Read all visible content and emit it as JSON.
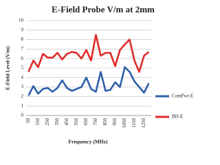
{
  "chart_data": {
    "type": "line",
    "title": "E-Field Probe V/m at 2mm",
    "x_label": "Frequency (MHz)",
    "y_label": "E-Field Level (V/m)",
    "categories": [
      "50",
      null,
      "150",
      null,
      "250",
      null,
      "350",
      null,
      "450",
      null,
      "550",
      null,
      "650",
      null,
      "750",
      null,
      "850",
      null,
      "950",
      null,
      "1050",
      null,
      "1150",
      null,
      "1250",
      null
    ],
    "series": [
      {
        "name": "ComPwr-E",
        "color": "#2e5ea8",
        "values": [
          2.1,
          3.1,
          2.3,
          2.8,
          2.9,
          2.5,
          2.9,
          3.7,
          2.9,
          2.6,
          2.8,
          3.0,
          4.0,
          2.8,
          2.5,
          4.6,
          2.6,
          2.7,
          3.5,
          3.0,
          5.1,
          4.6,
          3.6,
          3.0,
          2.4,
          3.4
        ]
      },
      {
        "name": "BH-E",
        "color": "#e02a2a",
        "values": [
          4.6,
          5.8,
          5.1,
          6.5,
          6.1,
          6.1,
          6.6,
          5.9,
          6.5,
          6.7,
          6.6,
          6.0,
          6.9,
          5.8,
          8.5,
          6.3,
          6.6,
          6.6,
          5.2,
          6.9,
          7.5,
          8.0,
          5.8,
          4.6,
          6.3,
          6.7
        ]
      }
    ],
    "ylim": [
      0,
      10
    ],
    "yticks": [
      0,
      1,
      2,
      3,
      4,
      5,
      6,
      7,
      8,
      9,
      10
    ],
    "grid": true,
    "legend": "right"
  }
}
